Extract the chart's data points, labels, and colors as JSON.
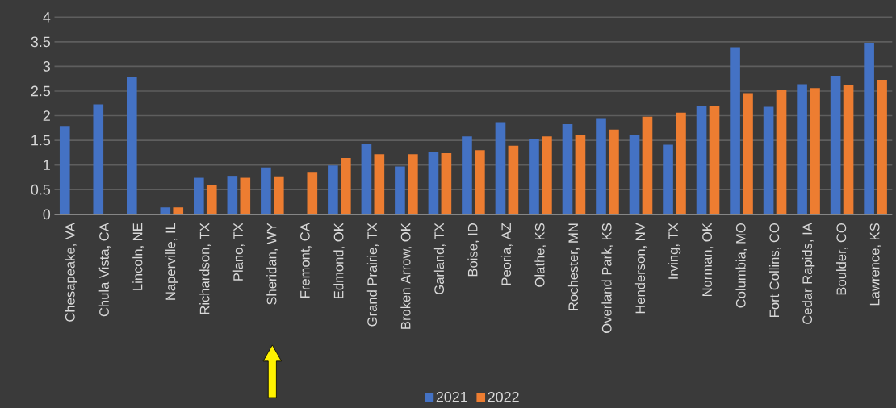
{
  "chart_data": {
    "type": "bar",
    "categories": [
      "Chesapeake, VA",
      "Chula Vista, CA",
      "Lincoln, NE",
      "Naperville, IL",
      "Richardson, TX",
      "Plano, TX",
      "Sheridan, WY",
      "Fremont, CA",
      "Edmond, OK",
      "Grand Prairie, TX",
      "Broken Arrow, OK",
      "Garland, TX",
      "Boise, ID",
      "Peoria, AZ",
      "Olathe, KS",
      "Rochester, MN",
      "Overland Park, KS",
      "Henderson, NV",
      "Irving, TX",
      "Norman, OK",
      "Columbia, MO",
      "Fort Collins, CO",
      "Cedar Rapids, IA",
      "Boulder, CO",
      "Lawrence, KS"
    ],
    "series": [
      {
        "name": "2021",
        "color": "#4472c4",
        "values": [
          1.79,
          2.23,
          2.79,
          0.14,
          0.74,
          0.78,
          0.95,
          null,
          0.99,
          1.43,
          0.97,
          1.26,
          1.58,
          1.87,
          1.52,
          1.83,
          1.95,
          1.6,
          1.41,
          2.2,
          3.39,
          2.18,
          2.64,
          2.81,
          3.48
        ]
      },
      {
        "name": "2022",
        "color": "#ed7d31",
        "values": [
          null,
          null,
          null,
          0.14,
          0.6,
          0.74,
          0.77,
          0.86,
          1.14,
          1.22,
          1.22,
          1.24,
          1.3,
          1.39,
          1.58,
          1.6,
          1.72,
          1.98,
          2.06,
          2.2,
          2.46,
          2.52,
          2.56,
          2.62,
          2.73
        ]
      }
    ],
    "ylim": [
      0,
      4
    ],
    "yticks": [
      0,
      0.5,
      1,
      1.5,
      2,
      2.5,
      3,
      3.5,
      4
    ],
    "grid": "y",
    "legend": "bottom"
  }
}
